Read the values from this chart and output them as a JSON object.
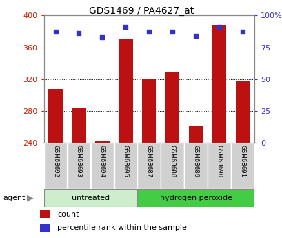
{
  "title": "GDS1469 / PA4627_at",
  "samples": [
    "GSM68692",
    "GSM68693",
    "GSM68694",
    "GSM68695",
    "GSM68687",
    "GSM68688",
    "GSM68689",
    "GSM68690",
    "GSM68691"
  ],
  "counts": [
    308,
    284,
    242,
    370,
    320,
    328,
    262,
    388,
    318
  ],
  "percentiles": [
    87,
    86,
    83,
    91,
    87,
    87,
    84,
    91,
    87
  ],
  "bar_color": "#bb1111",
  "dot_color": "#3333cc",
  "ylim_left": [
    240,
    400
  ],
  "ylim_right": [
    0,
    100
  ],
  "yticks_left": [
    240,
    280,
    320,
    360,
    400
  ],
  "yticks_right": [
    0,
    25,
    50,
    75,
    100
  ],
  "ytick_labels_right": [
    "0",
    "25",
    "50",
    "75",
    "100%"
  ],
  "grid_lines": [
    280,
    320,
    360
  ],
  "groups": [
    {
      "label": "untreated",
      "indices": [
        0,
        1,
        2,
        3
      ],
      "color": "#cceecc"
    },
    {
      "label": "hydrogen peroxide",
      "indices": [
        4,
        5,
        6,
        7,
        8
      ],
      "color": "#44cc44"
    }
  ],
  "agent_label": "agent",
  "legend_count_label": "count",
  "legend_pct_label": "percentile rank within the sample",
  "bar_width": 0.6,
  "background_color": "#ffffff",
  "plot_bg_color": "#ffffff",
  "sample_box_color": "#d0d0d0",
  "left_label_color": "#cc2200",
  "right_label_color": "#3333cc"
}
